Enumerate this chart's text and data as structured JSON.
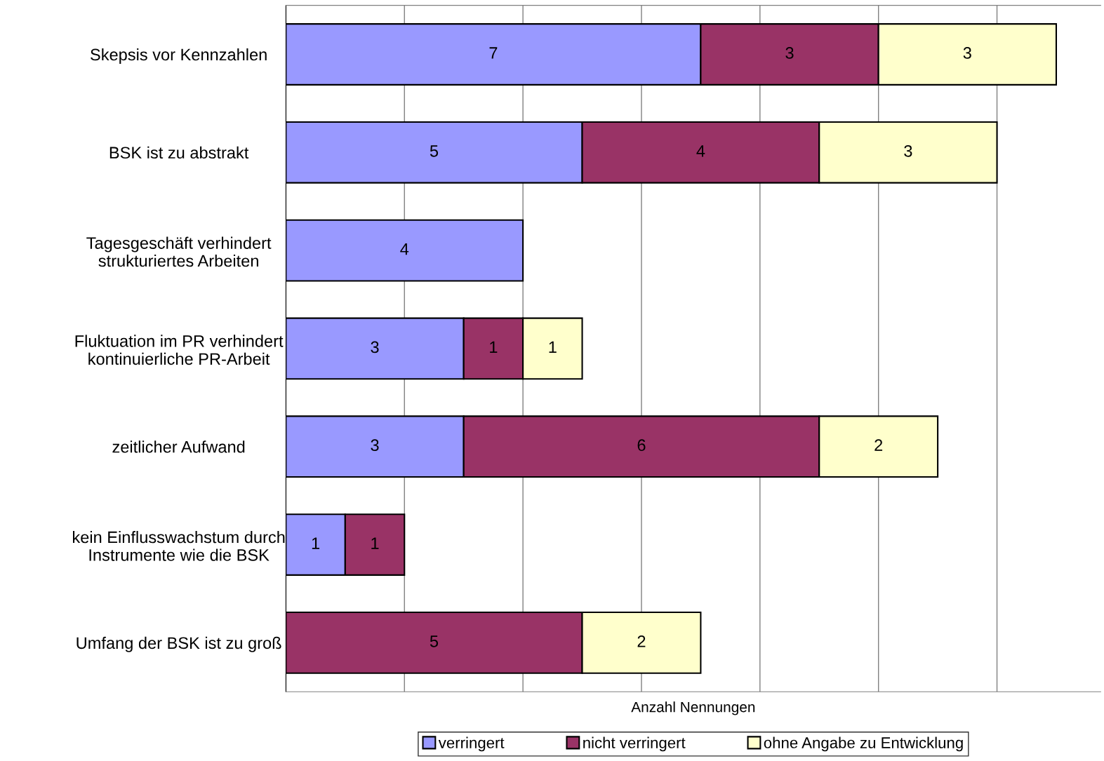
{
  "chart_data": {
    "type": "bar",
    "orientation": "horizontal",
    "stacked": true,
    "categories": [
      "Skepsis vor Kennzahlen",
      "BSK ist zu abstrakt",
      "Tagesgeschäft verhindert\nstrukturiertes Arbeiten",
      "Fluktuation im PR verhindert\nkontinuierliche PR-Arbeit",
      "zeitlicher Aufwand",
      "kein Einflusswachstum durch\nInstrumente wie die BSK",
      "Umfang der BSK ist zu groß"
    ],
    "series": [
      {
        "name": "verringert",
        "color": "#9999ff",
        "values": [
          7,
          5,
          4,
          3,
          3,
          1,
          null
        ]
      },
      {
        "name": "nicht verringert",
        "color": "#993366",
        "values": [
          3,
          4,
          null,
          1,
          6,
          1,
          5
        ]
      },
      {
        "name": "ohne Angabe zu Entwicklung",
        "color": "#ffffcc",
        "values": [
          3,
          3,
          null,
          1,
          2,
          null,
          2
        ]
      }
    ],
    "xlabel": "Anzahl Nennungen",
    "xlim": [
      0,
      13.75
    ],
    "xticks": [
      {
        "value": 0,
        "label": null
      },
      {
        "value": 2,
        "label": null
      },
      {
        "value": 4,
        "label": null
      },
      {
        "value": 6,
        "label": null
      },
      {
        "value": 8,
        "label": null
      },
      {
        "value": 10,
        "label": null
      },
      {
        "value": 12,
        "label": null
      }
    ],
    "tick_labels": "y",
    "grid": "x",
    "data_labels": true,
    "legend": "bottom"
  }
}
